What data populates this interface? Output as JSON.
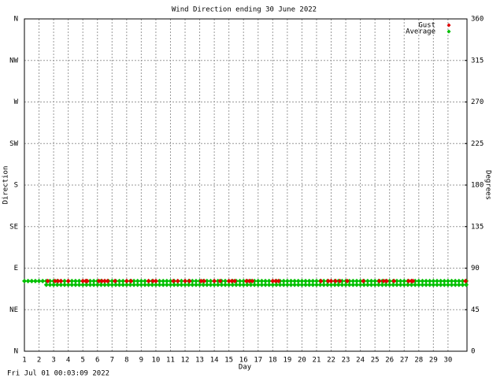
{
  "chart_data": {
    "type": "scatter",
    "title": "Wind Direction ending 30 June 2022",
    "xlabel": "Day",
    "ylabel": "Direction",
    "y2label": "Degrees",
    "footer": "Fri Jul 01 00:03:09 2022",
    "xlim": [
      1,
      31.3
    ],
    "xticks": [
      1,
      2,
      3,
      4,
      5,
      6,
      7,
      8,
      9,
      10,
      11,
      12,
      13,
      14,
      15,
      16,
      17,
      18,
      19,
      20,
      21,
      22,
      23,
      24,
      25,
      26,
      27,
      28,
      29,
      30
    ],
    "ylim": [
      0,
      360
    ],
    "yticks": [
      {
        "value": 0,
        "label": "N"
      },
      {
        "value": 45,
        "label": "NE"
      },
      {
        "value": 90,
        "label": "E"
      },
      {
        "value": 135,
        "label": "SE"
      },
      {
        "value": 180,
        "label": "S"
      },
      {
        "value": 225,
        "label": "SW"
      },
      {
        "value": 270,
        "label": "W"
      },
      {
        "value": 315,
        "label": "NW"
      },
      {
        "value": 360,
        "label": "N"
      }
    ],
    "y2lim": [
      0,
      360
    ],
    "y2ticks": [
      0,
      45,
      90,
      135,
      180,
      225,
      270,
      315,
      360
    ],
    "grid": true,
    "legend": "top-right",
    "series": [
      {
        "name": "Gust",
        "color": "#e00000",
        "x": [
          2.6,
          3.1,
          3.3,
          3.5,
          4.0,
          5.0,
          5.2,
          5.3,
          6.1,
          6.3,
          6.5,
          6.7,
          7.2,
          8.0,
          8.3,
          9.5,
          9.8,
          10.0,
          11.2,
          11.5,
          12.0,
          12.3,
          13.1,
          13.3,
          14.0,
          14.4,
          15.0,
          15.2,
          15.4,
          16.2,
          16.4,
          16.6,
          18.0,
          18.2,
          18.4,
          21.3,
          21.8,
          22.0,
          22.3,
          22.6,
          23.1,
          24.2,
          25.3,
          25.6,
          25.8,
          26.3,
          27.3,
          27.5,
          27.6,
          31.2
        ],
        "values": [
          76,
          76,
          76,
          76,
          76,
          76,
          76,
          76,
          76,
          76,
          76,
          76,
          76,
          76,
          76,
          76,
          76,
          76,
          76,
          76,
          76,
          76,
          76,
          76,
          76,
          76,
          76,
          76,
          76,
          76,
          76,
          76,
          76,
          76,
          76,
          76,
          76,
          76,
          76,
          76,
          76,
          76,
          76,
          76,
          76,
          76,
          76,
          76,
          76,
          76
        ]
      },
      {
        "name": "Average",
        "color": "#00c000",
        "x": [
          1,
          1.25,
          1.5,
          1.75,
          2,
          2.25,
          2.5,
          2.75,
          3,
          3.25,
          3.5,
          3.75,
          4,
          4.25,
          4.5,
          4.75,
          5,
          5.25,
          5.5,
          5.75,
          6,
          6.25,
          6.5,
          6.75,
          7,
          7.25,
          7.5,
          7.75,
          8,
          8.25,
          8.5,
          8.75,
          9,
          9.25,
          9.5,
          9.75,
          10,
          10.25,
          10.5,
          10.75,
          11,
          11.25,
          11.5,
          11.75,
          12,
          12.25,
          12.5,
          12.75,
          13,
          13.25,
          13.5,
          13.75,
          14,
          14.25,
          14.5,
          14.75,
          15,
          15.25,
          15.5,
          15.75,
          16,
          16.25,
          16.5,
          16.75,
          17,
          17.25,
          17.5,
          17.75,
          18,
          18.25,
          18.5,
          18.75,
          19,
          19.25,
          19.5,
          19.75,
          20,
          20.25,
          20.5,
          20.75,
          21,
          21.25,
          21.5,
          21.75,
          22,
          22.25,
          22.5,
          22.75,
          23,
          23.25,
          23.5,
          23.75,
          24,
          24.25,
          24.5,
          24.75,
          25,
          25.25,
          25.5,
          25.75,
          26,
          26.25,
          26.5,
          26.75,
          27,
          27.25,
          27.5,
          27.75,
          28,
          28.25,
          28.5,
          28.75,
          29,
          29.25,
          29.5,
          29.75,
          30,
          30.25,
          30.5,
          30.75,
          31,
          31.25,
          2.5,
          2.75,
          3,
          3.25,
          3.5,
          3.75,
          4,
          4.25,
          4.5,
          4.75,
          5,
          5.25,
          5.5,
          5.75,
          6,
          6.25,
          6.5,
          6.75,
          7,
          7.25,
          7.5,
          7.75,
          8,
          8.25,
          8.5,
          8.75,
          9,
          9.25,
          9.5,
          9.75,
          10,
          10.25,
          10.5,
          10.75,
          11,
          11.25,
          11.5,
          11.75,
          12,
          12.25,
          12.5,
          12.75,
          13,
          13.25,
          13.5,
          13.75,
          14,
          14.25,
          14.5,
          14.75,
          15,
          15.25,
          15.5,
          15.75,
          16,
          16.25,
          16.5,
          16.75,
          17,
          17.25,
          17.5,
          17.75,
          18,
          18.25,
          18.5,
          18.75,
          19,
          19.25,
          19.5,
          19.75,
          20,
          20.25,
          20.5,
          20.75,
          21,
          21.25,
          21.5,
          21.75,
          22,
          22.25,
          22.5,
          22.75,
          23,
          23.25,
          23.5,
          23.75,
          24,
          24.25,
          24.5,
          24.75,
          25,
          25.25,
          25.5,
          25.75,
          26,
          26.25,
          26.5,
          26.75,
          27,
          27.25,
          27.5,
          27.75,
          28,
          28.25,
          28.5,
          28.75,
          29,
          29.25,
          29.5,
          29.75,
          30,
          30.25,
          30.5,
          30.75,
          31,
          31.25
        ],
        "values": [
          76,
          76,
          76,
          76,
          76,
          76,
          76,
          76,
          76,
          76,
          76,
          76,
          76,
          76,
          76,
          76,
          76,
          76,
          76,
          76,
          76,
          76,
          76,
          76,
          76,
          76,
          76,
          76,
          76,
          76,
          76,
          76,
          76,
          76,
          76,
          76,
          76,
          76,
          76,
          76,
          76,
          76,
          76,
          76,
          76,
          76,
          76,
          76,
          76,
          76,
          76,
          76,
          76,
          76,
          76,
          76,
          76,
          76,
          76,
          76,
          76,
          76,
          76,
          76,
          76,
          76,
          76,
          76,
          76,
          76,
          76,
          76,
          76,
          76,
          76,
          76,
          76,
          76,
          76,
          76,
          76,
          76,
          76,
          76,
          76,
          76,
          76,
          76,
          76,
          76,
          76,
          76,
          76,
          76,
          76,
          76,
          76,
          76,
          76,
          76,
          76,
          76,
          76,
          76,
          76,
          76,
          76,
          76,
          76,
          76,
          76,
          76,
          76,
          76,
          76,
          76,
          76,
          76,
          76,
          76,
          76,
          76,
          72,
          72,
          72,
          72,
          72,
          72,
          72,
          72,
          72,
          72,
          72,
          72,
          72,
          72,
          72,
          72,
          72,
          72,
          72,
          72,
          72,
          72,
          72,
          72,
          72,
          72,
          72,
          72,
          72,
          72,
          72,
          72,
          72,
          72,
          72,
          72,
          72,
          72,
          72,
          72,
          72,
          72,
          72,
          72,
          72,
          72,
          72,
          72,
          72,
          72,
          72,
          72,
          72,
          72,
          72,
          72,
          72,
          72,
          72,
          72,
          72,
          72,
          72,
          72,
          72,
          72,
          72,
          72,
          72,
          72,
          72,
          72,
          72,
          72,
          72,
          72,
          72,
          72,
          72,
          72,
          72,
          72,
          72,
          72,
          72,
          72,
          72,
          72,
          72,
          72,
          72,
          72,
          72,
          72,
          72,
          72,
          72,
          72,
          72,
          72,
          72,
          72,
          72,
          72,
          72,
          72,
          72,
          72,
          72,
          72,
          72,
          72,
          72,
          72,
          72,
          72
        ]
      }
    ]
  }
}
